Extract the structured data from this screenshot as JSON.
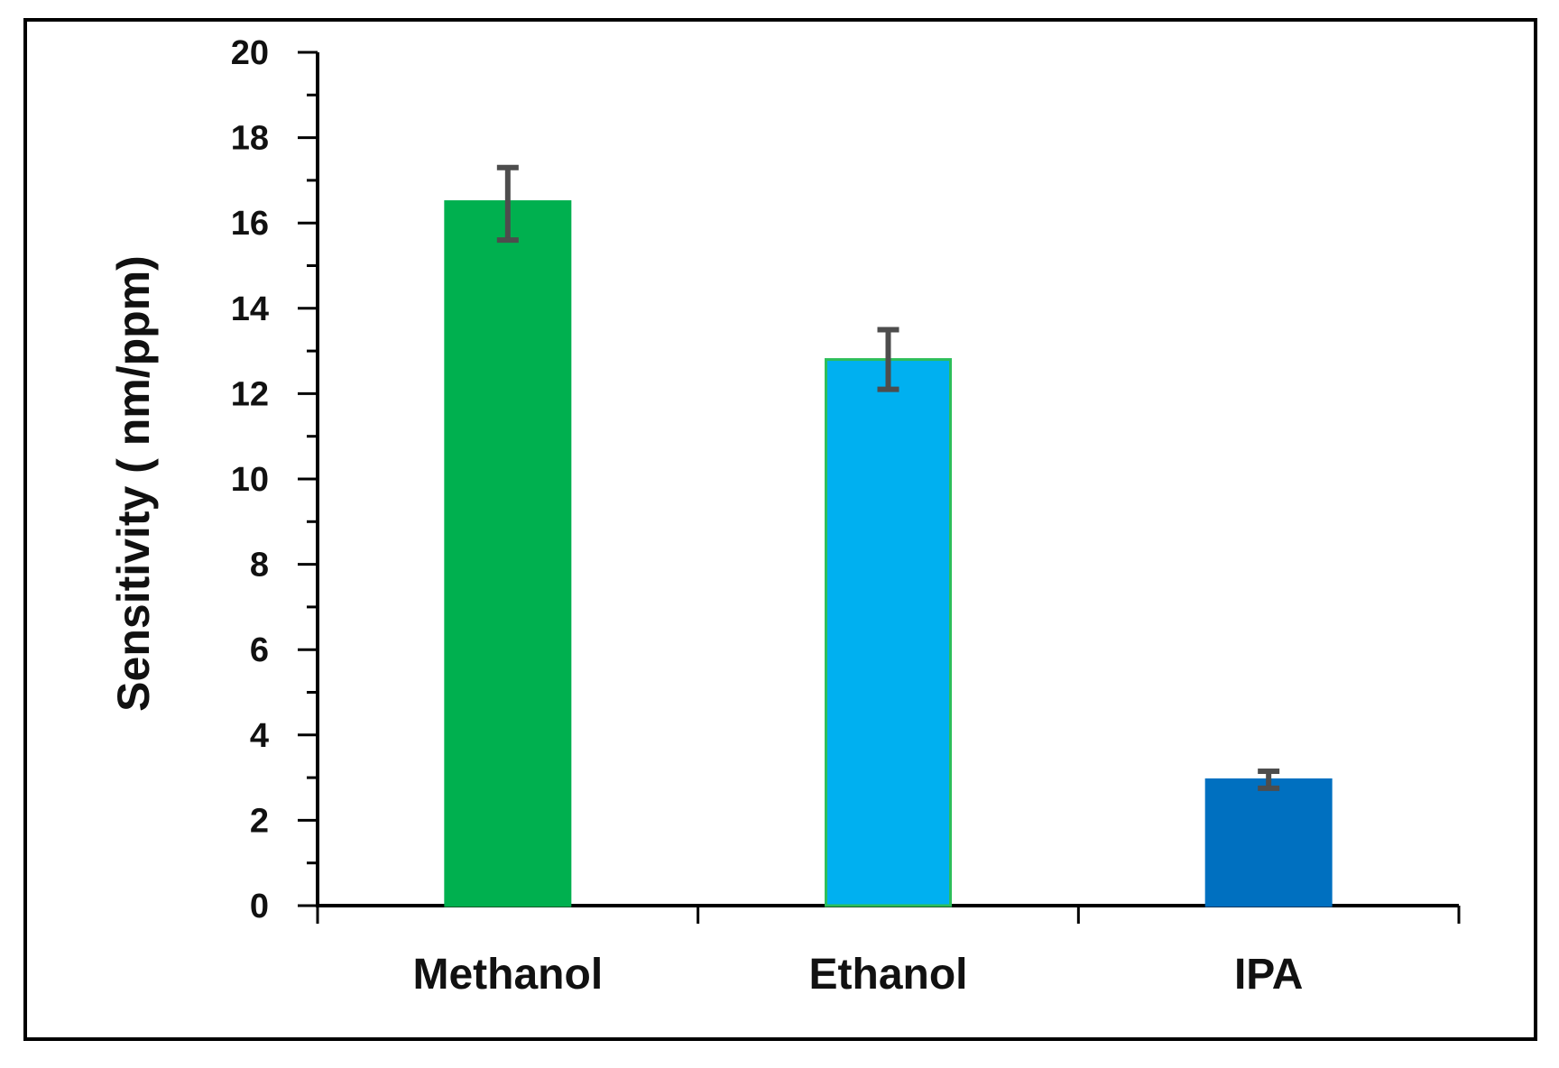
{
  "chart_data": {
    "type": "bar",
    "title": "",
    "xlabel": "",
    "ylabel": "Sensitivity ( nm/ppm)",
    "categories": [
      "Methanol",
      "Ethanol",
      "IPA"
    ],
    "values": [
      16.5,
      12.8,
      2.95
    ],
    "error_low": [
      15.6,
      12.1,
      2.75
    ],
    "error_high": [
      17.3,
      13.5,
      3.15
    ],
    "bar_colors": [
      "#00B04F",
      "#00B0F0",
      "#0070C0"
    ],
    "bar_edge_colors": [
      "#00B04F",
      "#2DBE5A",
      "#0070C0"
    ],
    "error_bar_color": "#4D4D4D",
    "ylim": [
      0,
      20
    ],
    "yticks": [
      "0",
      "2",
      "4",
      "6",
      "8",
      "10",
      "12",
      "14",
      "16",
      "18",
      "20"
    ],
    "minor_ticks": true,
    "grid": false,
    "legend": "none"
  }
}
